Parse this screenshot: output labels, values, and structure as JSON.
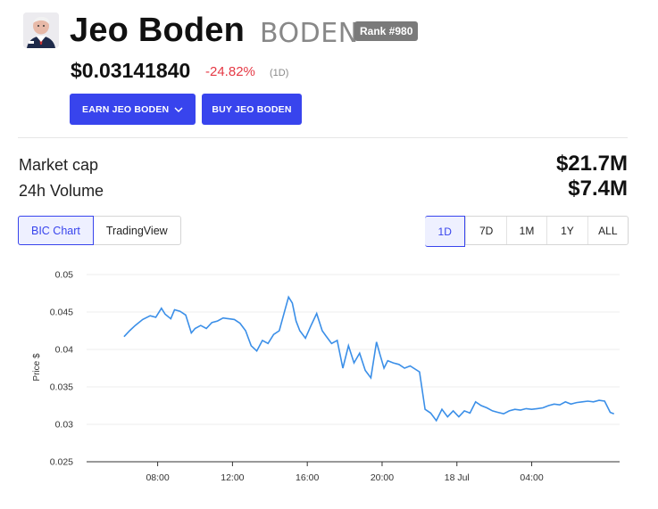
{
  "coin": {
    "name": "Jeo Boden",
    "ticker": "BODEN",
    "rank": "Rank #980",
    "price": "$0.03141840",
    "change": "-24.82%",
    "change_period": "(1D)"
  },
  "buttons": {
    "earn_label": "EARN JEO BODEN",
    "buy_label": "BUY JEO BODEN"
  },
  "stats": {
    "market_cap_label": "Market cap",
    "market_cap_value": "$21.7M",
    "volume_label": "24h Volume",
    "volume_value": "$7.4M"
  },
  "chart_tabs": {
    "bic": "BIC Chart",
    "tradingview": "TradingView"
  },
  "ranges": [
    "1D",
    "7D",
    "1M",
    "1Y",
    "ALL"
  ],
  "colors": {
    "accent": "#3844ed",
    "negative": "#e53945",
    "line": "#3b8fe8"
  },
  "chart_data": {
    "type": "line",
    "ylabel": "Price $",
    "ylim": [
      0.025,
      0.05
    ],
    "yticks": [
      "0.05",
      "0.045",
      "0.04",
      "0.035",
      "0.03",
      "0.025"
    ],
    "xticks": [
      "08:00",
      "12:00",
      "16:00",
      "20:00",
      "18 Jul",
      "04:00"
    ],
    "grid": true,
    "series": [
      {
        "x": [
          6.2,
          6.5,
          6.8,
          7.2,
          7.6,
          7.9,
          8.2,
          8.4,
          8.7,
          8.9,
          9.2,
          9.5,
          9.8,
          10.0,
          10.3,
          10.6,
          10.9,
          11.2,
          11.5,
          11.8,
          12.1,
          12.4,
          12.7,
          13.0,
          13.3,
          13.6,
          13.9,
          14.2,
          14.5,
          14.8,
          15.0,
          15.2,
          15.4,
          15.6,
          15.9,
          16.2,
          16.5,
          16.8,
          17.0,
          17.3,
          17.6,
          17.9,
          18.2,
          18.5,
          18.8,
          19.1,
          19.4,
          19.7,
          19.9,
          20.1,
          20.3,
          20.6,
          20.9,
          21.2,
          21.5,
          22.0,
          22.3,
          22.6,
          22.9,
          23.2,
          23.5,
          23.8,
          24.1,
          24.4,
          24.7,
          25.0,
          25.3,
          25.6,
          25.9,
          26.2,
          26.5,
          26.8,
          27.1,
          27.4,
          27.7,
          28.0,
          28.3,
          28.6,
          28.9,
          29.2,
          29.5,
          29.8,
          30.1,
          30.4,
          30.7,
          31.0,
          31.3,
          31.6,
          31.9,
          32.2,
          32.4
        ],
        "y": [
          0.0417,
          0.0425,
          0.0432,
          0.044,
          0.0445,
          0.0443,
          0.0455,
          0.0447,
          0.0441,
          0.0453,
          0.0451,
          0.0446,
          0.0422,
          0.0428,
          0.0432,
          0.0428,
          0.0436,
          0.0438,
          0.0442,
          0.0441,
          0.044,
          0.0435,
          0.0425,
          0.0405,
          0.0398,
          0.0412,
          0.0408,
          0.042,
          0.0425,
          0.0452,
          0.047,
          0.0462,
          0.0438,
          0.0425,
          0.0415,
          0.0432,
          0.0448,
          0.0425,
          0.0418,
          0.0408,
          0.0412,
          0.0375,
          0.0405,
          0.0382,
          0.0395,
          0.0372,
          0.0362,
          0.041,
          0.0392,
          0.0375,
          0.0385,
          0.0382,
          0.038,
          0.0375,
          0.0378,
          0.037,
          0.032,
          0.0315,
          0.0305,
          0.032,
          0.031,
          0.0318,
          0.031,
          0.0318,
          0.0315,
          0.033,
          0.0325,
          0.0322,
          0.0318,
          0.0316,
          0.0314,
          0.0318,
          0.032,
          0.0319,
          0.0321,
          0.032,
          0.0321,
          0.0322,
          0.0325,
          0.0327,
          0.0326,
          0.033,
          0.0327,
          0.0329,
          0.033,
          0.0331,
          0.033,
          0.0332,
          0.0331,
          0.0316,
          0.0314
        ]
      }
    ]
  }
}
